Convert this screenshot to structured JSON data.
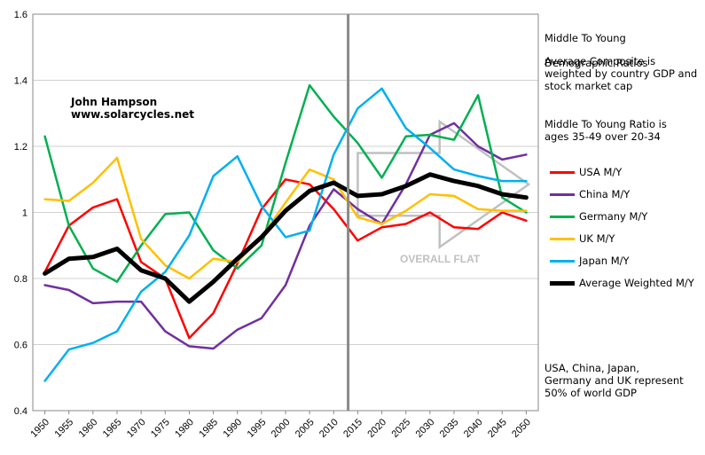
{
  "notes": {
    "title_line1": "Middle To Young",
    "title_line2": "Demographic Ratios",
    "composite": "Average Composite is\nweighted by country GDP and\nstock market cap",
    "definition": "Middle To Young Ratio is\nages 35-49 over 20-34",
    "footer": "USA, China, Japan,\nGermany and UK represent\n50% of world GDP"
  },
  "author": {
    "name": "John Hampson",
    "site": "www.solarcycles.net"
  },
  "annotation": {
    "label": "OVERALL FLAT"
  },
  "chart_data": {
    "type": "line",
    "x": [
      1950,
      1955,
      1960,
      1965,
      1970,
      1975,
      1980,
      1985,
      1990,
      1995,
      2000,
      2005,
      2010,
      2015,
      2020,
      2025,
      2030,
      2035,
      2040,
      2045,
      2050
    ],
    "x_ticks": [
      "1950",
      "1955",
      "1960",
      "1965",
      "1970",
      "1975",
      "1980",
      "1985",
      "1990",
      "1995",
      "2000",
      "2005",
      "2010",
      "2015",
      "2020",
      "2025",
      "2030",
      "2035",
      "2040",
      "2045",
      "2050"
    ],
    "ylim": [
      0.4,
      1.6
    ],
    "y_ticks": [
      "0.4",
      "0.6",
      "0.8",
      "1",
      "1.2",
      "1.4",
      "1.6"
    ],
    "y_tick_values": [
      0.4,
      0.6,
      0.8,
      1.0,
      1.2,
      1.4,
      1.6
    ],
    "divider_x": 2013,
    "grid": true,
    "legend_position": "right",
    "series": [
      {
        "name": "USA M/Y",
        "color": "#ff0000",
        "values": [
          0.82,
          0.96,
          1.015,
          1.04,
          0.85,
          0.8,
          0.62,
          0.695,
          0.845,
          1.01,
          1.1,
          1.085,
          1.01,
          0.915,
          0.955,
          0.965,
          1.0,
          0.955,
          0.95,
          1.0,
          0.975
        ]
      },
      {
        "name": "China M/Y",
        "color": "#7030a0",
        "values": [
          0.78,
          0.765,
          0.725,
          0.73,
          0.73,
          0.64,
          0.595,
          0.588,
          0.645,
          0.68,
          0.78,
          0.96,
          1.07,
          1.01,
          0.965,
          1.085,
          1.235,
          1.27,
          1.2,
          1.16,
          1.175
        ]
      },
      {
        "name": "Germany M/Y",
        "color": "#00b050",
        "values": [
          1.23,
          0.96,
          0.83,
          0.79,
          0.9,
          0.995,
          1.0,
          0.885,
          0.83,
          0.9,
          1.15,
          1.385,
          1.29,
          1.21,
          1.105,
          1.23,
          1.235,
          1.22,
          1.355,
          1.045,
          1.0
        ]
      },
      {
        "name": "UK M/Y",
        "color": "#ffc000",
        "values": [
          1.04,
          1.035,
          1.09,
          1.165,
          0.92,
          0.84,
          0.8,
          0.86,
          0.85,
          0.925,
          1.03,
          1.13,
          1.1,
          0.985,
          0.965,
          1.005,
          1.055,
          1.05,
          1.01,
          1.005,
          1.005
        ]
      },
      {
        "name": "Japan M/Y",
        "color": "#00b0f0",
        "values": [
          0.49,
          0.585,
          0.605,
          0.64,
          0.76,
          0.82,
          0.93,
          1.11,
          1.17,
          1.02,
          0.925,
          0.945,
          1.175,
          1.315,
          1.375,
          1.255,
          1.195,
          1.13,
          1.11,
          1.095,
          1.095
        ]
      },
      {
        "name": "Average Weighted M/Y",
        "color": "#000000",
        "thick": true,
        "values": [
          0.815,
          0.86,
          0.865,
          0.89,
          0.825,
          0.8,
          0.73,
          0.79,
          0.86,
          0.925,
          1.005,
          1.065,
          1.09,
          1.05,
          1.055,
          1.08,
          1.115,
          1.095,
          1.08,
          1.055,
          1.045
        ]
      }
    ]
  }
}
